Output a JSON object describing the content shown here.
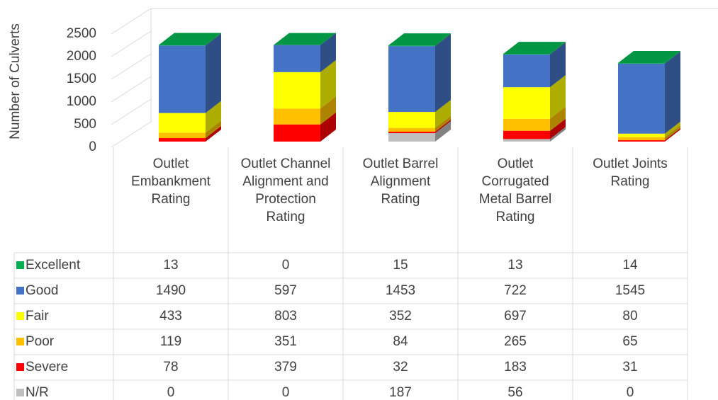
{
  "chart_data": {
    "type": "bar3d_stacked",
    "y_label": "Number of Culverts",
    "categories": [
      "Outlet Embankment Rating",
      "Outlet Channel Alignment and Protection Rating",
      "Outlet Barrel Alignment Rating",
      "Outlet Corrugated Metal Barrel Rating",
      "Outlet Joints Rating"
    ],
    "series": [
      {
        "name": "Excellent",
        "color": "#00b050",
        "values": [
          13,
          0,
          15,
          13,
          14
        ]
      },
      {
        "name": "Good",
        "color": "#4472c4",
        "values": [
          1490,
          597,
          1453,
          722,
          1545
        ]
      },
      {
        "name": "Fair",
        "color": "#ffff00",
        "values": [
          433,
          803,
          352,
          697,
          80
        ]
      },
      {
        "name": "Poor",
        "color": "#ffc000",
        "values": [
          119,
          351,
          84,
          265,
          65
        ]
      },
      {
        "name": "Severe",
        "color": "#ff0000",
        "values": [
          78,
          379,
          32,
          183,
          31
        ]
      },
      {
        "name": "N/R",
        "color": "#bfbfbf",
        "values": [
          0,
          0,
          187,
          56,
          0
        ]
      }
    ],
    "ylim": [
      0,
      2500
    ],
    "yticks": [
      0,
      500,
      1000,
      1500,
      2000,
      2500
    ],
    "grid": true
  }
}
